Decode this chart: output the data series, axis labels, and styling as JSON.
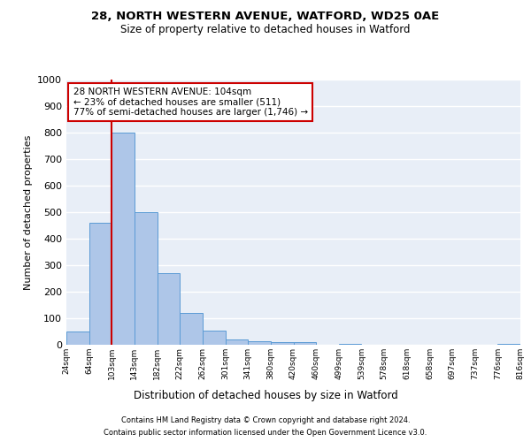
{
  "title1": "28, NORTH WESTERN AVENUE, WATFORD, WD25 0AE",
  "title2": "Size of property relative to detached houses in Watford",
  "xlabel": "Distribution of detached houses by size in Watford",
  "ylabel": "Number of detached properties",
  "bin_labels": [
    "24sqm",
    "64sqm",
    "103sqm",
    "143sqm",
    "182sqm",
    "222sqm",
    "262sqm",
    "301sqm",
    "341sqm",
    "380sqm",
    "420sqm",
    "460sqm",
    "499sqm",
    "539sqm",
    "578sqm",
    "618sqm",
    "658sqm",
    "697sqm",
    "737sqm",
    "776sqm",
    "816sqm"
  ],
  "bar_heights": [
    50,
    460,
    800,
    500,
    270,
    120,
    55,
    20,
    15,
    10,
    10,
    0,
    5,
    0,
    0,
    0,
    0,
    0,
    0,
    5
  ],
  "bar_color": "#aec6e8",
  "bar_edge_color": "#5b9bd5",
  "background_color": "#e8eef7",
  "grid_color": "#ffffff",
  "red_line_x": 2,
  "red_line_color": "#cc0000",
  "annotation_text": "28 NORTH WESTERN AVENUE: 104sqm\n← 23% of detached houses are smaller (511)\n77% of semi-detached houses are larger (1,746) →",
  "annotation_box_color": "#ffffff",
  "annotation_box_edge": "#cc0000",
  "footnote1": "Contains HM Land Registry data © Crown copyright and database right 2024.",
  "footnote2": "Contains public sector information licensed under the Open Government Licence v3.0.",
  "ylim": [
    0,
    1000
  ],
  "yticks": [
    0,
    100,
    200,
    300,
    400,
    500,
    600,
    700,
    800,
    900,
    1000
  ],
  "title1_fontsize": 9.5,
  "title2_fontsize": 8.5,
  "ylabel_fontsize": 8,
  "xlabel_fontsize": 8.5,
  "ytick_fontsize": 8,
  "xtick_fontsize": 6.5,
  "annotation_fontsize": 7.5,
  "footnote_fontsize": 6.0
}
